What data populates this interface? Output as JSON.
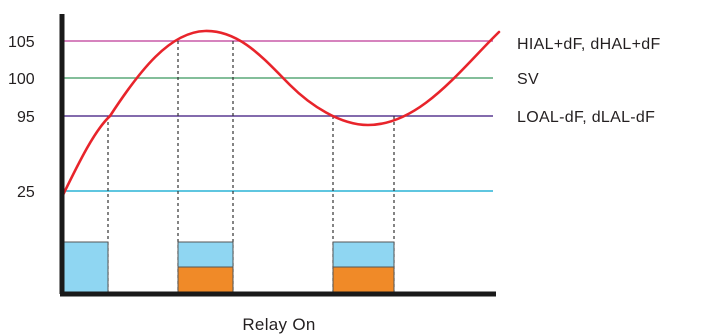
{
  "colors": {
    "axis": "#1a1a1a",
    "hial_line": "#c85aa8",
    "sv_line": "#5aa878",
    "loal_line": "#5a3a92",
    "line_25": "#2ab4d6",
    "curve": "#e8242b",
    "relay_blue": "#8fd6f2",
    "relay_orange": "#f08a28"
  },
  "y_ticks": {
    "t105": "105",
    "t100": "100",
    "t95": "95",
    "t25": "25"
  },
  "right_labels": {
    "hial": "HIAL+dF, dHAL+dF",
    "sv": "SV",
    "loal": "LOAL-dF, dLAL-dF"
  },
  "x_label": "Relay On"
}
